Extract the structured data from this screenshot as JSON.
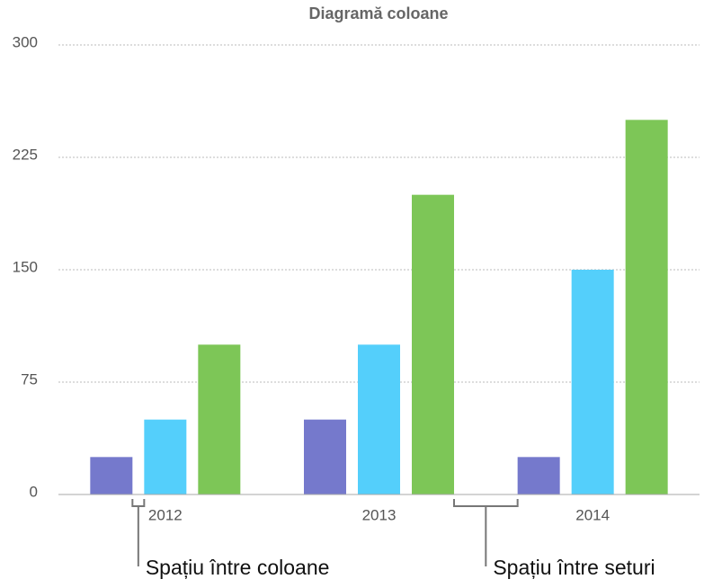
{
  "chart_data": {
    "type": "bar",
    "title": "Diagramă coloane",
    "categories": [
      "2012",
      "2013",
      "2014"
    ],
    "series": [
      {
        "color": "#7579cc",
        "values": [
          25,
          50,
          25
        ]
      },
      {
        "color": "#54cffb",
        "values": [
          50,
          100,
          150
        ]
      },
      {
        "color": "#7dc657",
        "values": [
          100,
          200,
          250
        ]
      }
    ],
    "ylim": [
      0,
      300
    ],
    "yticks": [
      0,
      75,
      150,
      225,
      300
    ],
    "grid": true,
    "annotations": [
      "Spațiu între coloane",
      "Spațiu între seturi"
    ]
  }
}
